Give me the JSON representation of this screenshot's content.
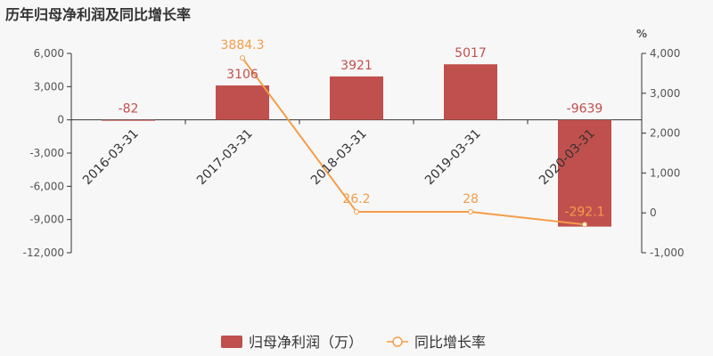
{
  "title": "历年归母净利润及同比增长率",
  "chart_data": {
    "type": "bar",
    "categories": [
      "2016-03-31",
      "2017-03-31",
      "2018-03-31",
      "2019-03-31",
      "2020-03-31"
    ],
    "series": [
      {
        "name": "归母净利润（万）",
        "type": "bar",
        "axis": "left",
        "color": "#c0504d",
        "values": [
          -82,
          3106,
          3921,
          5017,
          -9639
        ],
        "labels": [
          "-82",
          "3106",
          "3921",
          "5017",
          "-9639"
        ]
      },
      {
        "name": "同比增长率",
        "type": "line",
        "axis": "right",
        "color": "#f59d4a",
        "values": [
          null,
          3884.3,
          26.2,
          28,
          -292.1
        ],
        "labels": [
          "",
          "3884.3",
          "26.2",
          "28",
          "-292.1"
        ]
      }
    ],
    "y_left": {
      "min": -12000,
      "max": 6000,
      "ticks": [
        6000,
        3000,
        0,
        -3000,
        -6000,
        -9000,
        -12000
      ],
      "tick_labels": [
        "6,000",
        "3,000",
        "0",
        "-3,000",
        "-6,000",
        "-9,000",
        "-12,000"
      ]
    },
    "y_right": {
      "label": "%",
      "min": -1000,
      "max": 4000,
      "ticks": [
        4000,
        3000,
        2000,
        1000,
        0,
        -1000
      ],
      "tick_labels": [
        "4,000",
        "3,000",
        "2,000",
        "1,000",
        "0",
        "-1,000"
      ]
    },
    "grid": false,
    "legend_position": "bottom"
  }
}
